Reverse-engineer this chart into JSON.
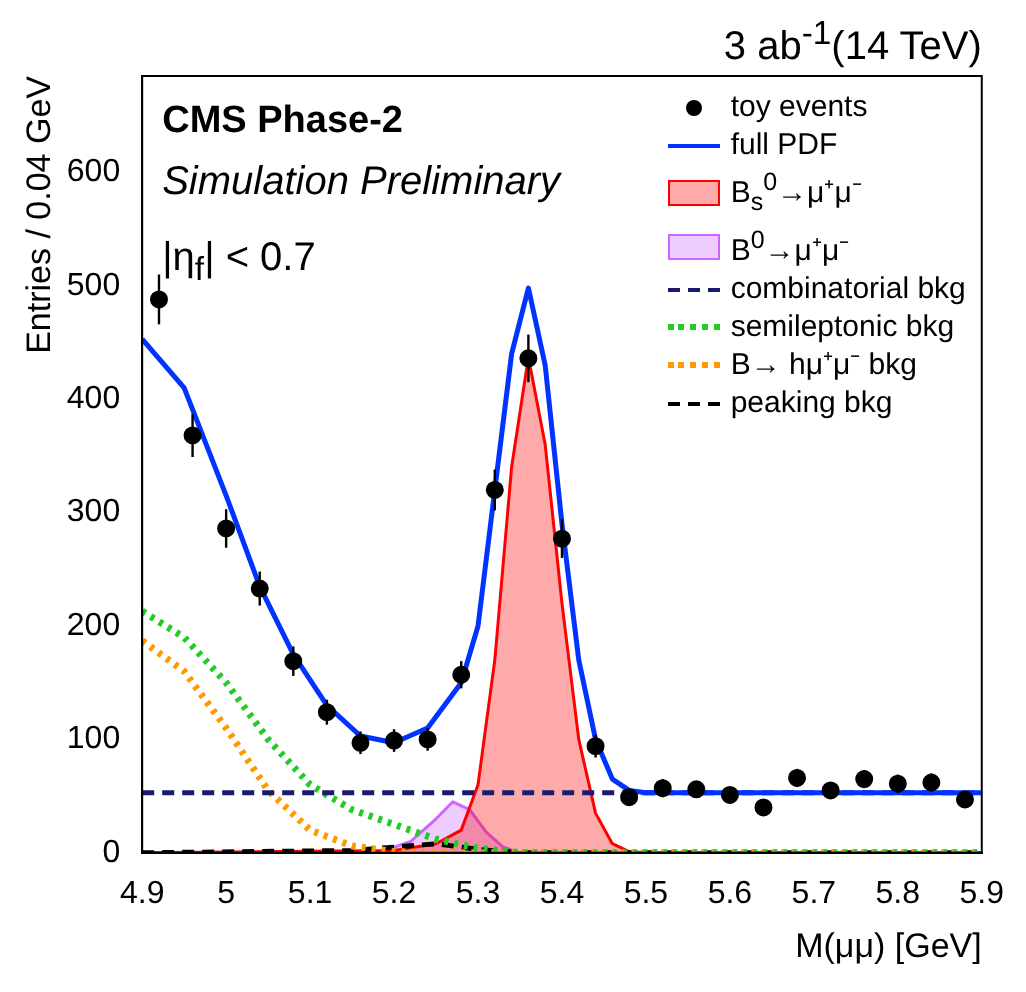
{
  "chart_data": {
    "type": "line",
    "title": "3 ab$^{-1}$(14 TeV)",
    "xlabel": "M(μμ) [GeV]",
    "ylabel": "Entries / 0.04 GeV",
    "annotations": [
      "CMS Phase-2",
      "Simulation Preliminary",
      "|η$_{f}$| < 0.7"
    ],
    "xlim": [
      4.9,
      5.9
    ],
    "xticks": [
      4.9,
      5,
      5.1,
      5.2,
      5.3,
      5.4,
      5.5,
      5.6,
      5.7,
      5.8,
      5.9
    ],
    "ylim": [
      0,
      685
    ],
    "yticks": [
      0,
      100,
      200,
      300,
      400,
      500,
      600
    ],
    "grid": false,
    "legend": "top right",
    "series": [
      {
        "name": "toy events",
        "type": "scatter",
        "color": "#000000",
        "marker": "circle",
        "x": [
          4.92,
          4.96,
          5.0,
          5.04,
          5.08,
          5.12,
          5.16,
          5.2,
          5.24,
          5.28,
          5.32,
          5.36,
          5.4,
          5.44,
          5.48,
          5.52,
          5.56,
          5.6,
          5.64,
          5.68,
          5.72,
          5.76,
          5.8,
          5.84,
          5.88
        ],
        "values": [
          488,
          368,
          286,
          233,
          169,
          124,
          97,
          99,
          100,
          157,
          320,
          436,
          277,
          94,
          49,
          57,
          56,
          51,
          40,
          66,
          55,
          65,
          61,
          62,
          47
        ],
        "errors": [
          22,
          19,
          17,
          15,
          13,
          11,
          10,
          10,
          10,
          12,
          18,
          21,
          17,
          10,
          7,
          8,
          7,
          7,
          6,
          8,
          7,
          8,
          8,
          8,
          7
        ]
      },
      {
        "name": "full PDF",
        "type": "line",
        "color": "#0033ff",
        "line_style": "solid",
        "x": [
          4.9,
          4.95,
          5.0,
          5.04,
          5.08,
          5.12,
          5.16,
          5.2,
          5.24,
          5.28,
          5.3,
          5.32,
          5.34,
          5.36,
          5.38,
          5.4,
          5.42,
          5.44,
          5.46,
          5.48,
          5.5,
          5.9
        ],
        "values": [
          453,
          410,
          315,
          235,
          175,
          130,
          103,
          97,
          110,
          150,
          200,
          320,
          440,
          498,
          430,
          290,
          170,
          100,
          65,
          55,
          53,
          53
        ]
      },
      {
        "name": "B$_{s}$$^{0}$→μ⁺μ⁻",
        "type": "area",
        "color": "#ff0000",
        "line_style": "solid",
        "x": [
          4.9,
          5.2,
          5.25,
          5.28,
          5.3,
          5.32,
          5.34,
          5.36,
          5.38,
          5.4,
          5.42,
          5.44,
          5.46,
          5.48,
          5.5,
          5.9
        ],
        "values": [
          0,
          2,
          8,
          20,
          60,
          170,
          340,
          437,
          360,
          220,
          100,
          35,
          8,
          1,
          0,
          0
        ]
      },
      {
        "name": "B$^{0}$→μ⁺μ⁻",
        "type": "area",
        "color": "#cc66ff",
        "line_style": "solid",
        "x": [
          4.9,
          5.18,
          5.22,
          5.25,
          5.27,
          5.29,
          5.31,
          5.33,
          5.35,
          5.9
        ],
        "values": [
          0,
          0,
          10,
          30,
          45,
          38,
          18,
          5,
          0,
          0
        ]
      },
      {
        "name": "combinatorial bkg",
        "type": "line",
        "color": "#1a1a6e",
        "line_style": "dashed",
        "x": [
          4.9,
          5.9
        ],
        "values": [
          53,
          53
        ]
      },
      {
        "name": "semileptonic bkg",
        "type": "line",
        "color": "#22cc22",
        "line_style": "dotted",
        "x": [
          4.9,
          4.95,
          5.0,
          5.05,
          5.1,
          5.15,
          5.2,
          5.25,
          5.3,
          5.35,
          5.9
        ],
        "values": [
          213,
          190,
          150,
          100,
          60,
          38,
          25,
          12,
          4,
          0,
          0
        ]
      },
      {
        "name": "B→ hμ⁺μ⁻ bkg",
        "type": "line",
        "color": "#ff9900",
        "line_style": "dotted",
        "x": [
          4.9,
          4.95,
          5.0,
          5.05,
          5.1,
          5.15,
          5.2,
          5.25,
          5.9
        ],
        "values": [
          187,
          160,
          110,
          55,
          20,
          6,
          1,
          0,
          0
        ]
      },
      {
        "name": "peaking bkg",
        "type": "line",
        "color": "#000000",
        "line_style": "dashed",
        "x": [
          4.9,
          5.15,
          5.2,
          5.25,
          5.3,
          5.35,
          5.9
        ],
        "values": [
          0,
          2,
          5,
          8,
          3,
          0,
          0
        ]
      }
    ]
  }
}
